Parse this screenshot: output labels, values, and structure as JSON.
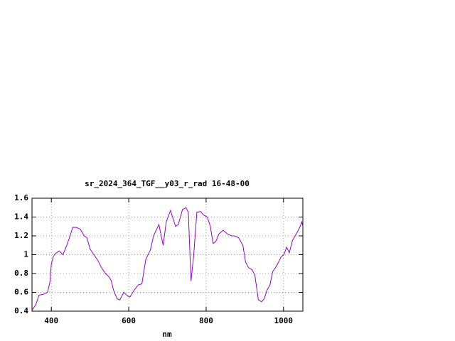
{
  "chart_data": {
    "type": "line",
    "title": "sr_2024_364_TGF__y03_r_rad 16-48-00",
    "x_label": "nm",
    "x": [
      350,
      360,
      368,
      380,
      390,
      396,
      400,
      405,
      410,
      420,
      430,
      440,
      450,
      455,
      465,
      475,
      485,
      492,
      500,
      510,
      520,
      530,
      540,
      550,
      555,
      561,
      570,
      577,
      587,
      598,
      603,
      615,
      625,
      634,
      644,
      656,
      664,
      678,
      689,
      697,
      708,
      721,
      728,
      739,
      748,
      754,
      761,
      768,
      776,
      785,
      794,
      803,
      811,
      818,
      825,
      833,
      844,
      855,
      866,
      873,
      884,
      895,
      902,
      910,
      919,
      926,
      935,
      943,
      950,
      957,
      965,
      972,
      979,
      987,
      994,
      1001,
      1008,
      1015,
      1023,
      1030,
      1037,
      1043,
      1047,
      1050
    ],
    "series": [
      {
        "name": "sr_2024_364_TGF__y03_r_rad",
        "color": "#9400d3",
        "values": [
          0.41,
          0.47,
          0.57,
          0.58,
          0.6,
          0.7,
          0.9,
          0.98,
          1.01,
          1.04,
          1.0,
          1.1,
          1.22,
          1.29,
          1.29,
          1.27,
          1.2,
          1.18,
          1.06,
          1.0,
          0.94,
          0.86,
          0.8,
          0.76,
          0.72,
          0.62,
          0.53,
          0.52,
          0.6,
          0.56,
          0.55,
          0.63,
          0.68,
          0.69,
          0.95,
          1.05,
          1.2,
          1.32,
          1.1,
          1.35,
          1.47,
          1.3,
          1.32,
          1.48,
          1.5,
          1.45,
          0.72,
          1.0,
          1.45,
          1.46,
          1.42,
          1.4,
          1.3,
          1.12,
          1.14,
          1.22,
          1.26,
          1.22,
          1.2,
          1.2,
          1.18,
          1.1,
          0.92,
          0.86,
          0.84,
          0.78,
          0.52,
          0.5,
          0.53,
          0.62,
          0.68,
          0.82,
          0.86,
          0.92,
          0.98,
          1.0,
          1.08,
          1.02,
          1.15,
          1.2,
          1.25,
          1.3,
          1.35,
          1.3
        ]
      }
    ],
    "xlim": [
      350,
      1050
    ],
    "xticks": [
      400,
      600,
      800,
      1000
    ],
    "ylim": [
      0.4,
      1.6
    ],
    "yticks": [
      0.4,
      0.6,
      0.8,
      1,
      1.2,
      1.4,
      1.6
    ],
    "grid": true
  }
}
